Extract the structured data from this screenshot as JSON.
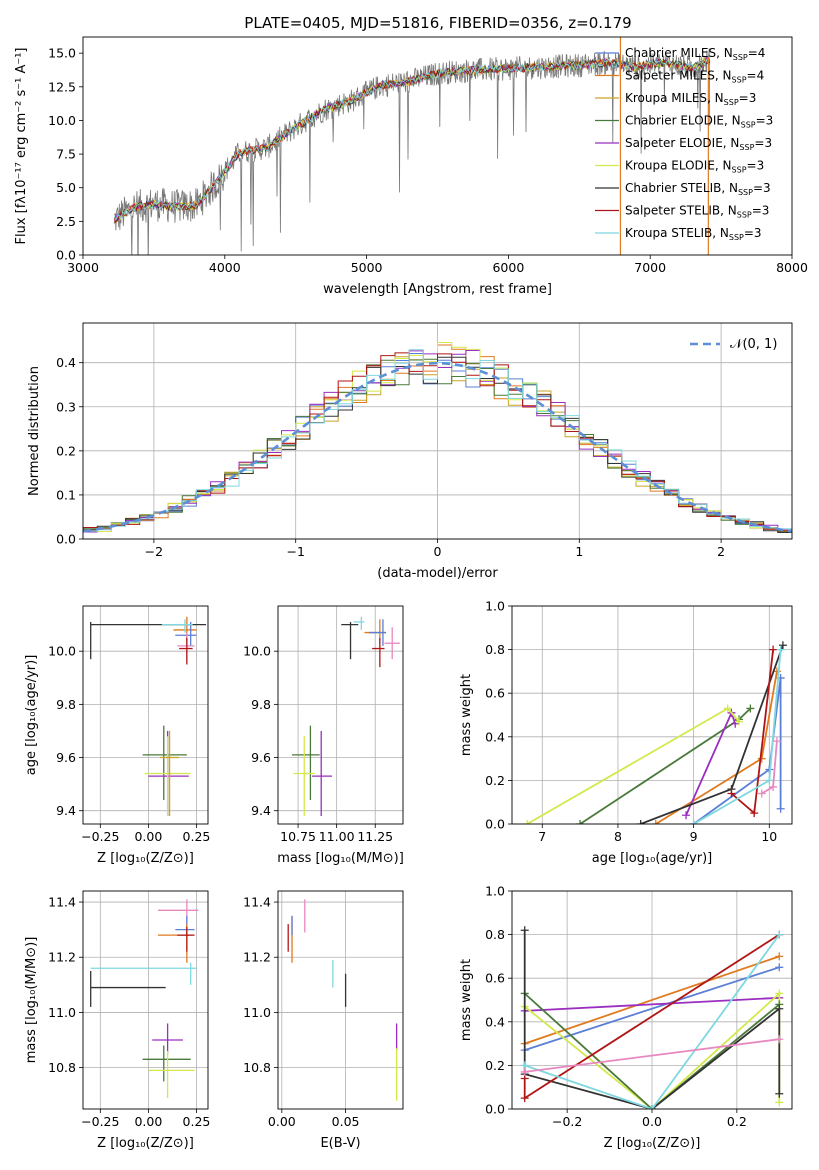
{
  "figure": {
    "title": "PLATE=0405, MJD=51816, FIBERID=0356, z=0.179"
  },
  "colors": {
    "chabrier_miles": "#5b7fd6",
    "salpeter_miles": "#e07a1f",
    "kroupa_miles": "#c9a227",
    "chabrier_elodie": "#4a7a3a",
    "salpeter_elodie": "#9a2ec0",
    "kroupa_elodie": "#d4e84a",
    "chabrier_stelib": "#333333",
    "salpeter_stelib": "#b01515",
    "kroupa_stelib": "#7fd8e0",
    "extra_pink": "#e888c0",
    "grey_data": "#777777"
  },
  "chart_data": [
    {
      "id": "spectrum",
      "type": "line",
      "title": "PLATE=0405, MJD=51816, FIBERID=0356, z=0.179",
      "xlabel": "wavelength [Angstrom, rest frame]",
      "ylabel": "Flux [fλ10⁻¹⁷ erg cm⁻² s⁻¹ A⁻¹]",
      "xlim": [
        3000,
        8000
      ],
      "ylim": [
        0,
        16.2
      ],
      "xticks": [
        "3000",
        "4000",
        "5000",
        "6000",
        "7000",
        "8000"
      ],
      "yticks": [
        "0.0",
        "2.5",
        "5.0",
        "7.5",
        "10.0",
        "12.5",
        "15.0"
      ],
      "legend": [
        "Chabrier MILES, N_SSP=4",
        "Salpeter MILES, N_SSP=4",
        "Kroupa MILES, N_SSP=3",
        "Chabrier ELODIE, N_SSP=3",
        "Salpeter ELODIE, N_SSP=3",
        "Kroupa ELODIE, N_SSP=3",
        "Chabrier STELIB, N_SSP=3",
        "Salpeter STELIB, N_SSP=3",
        "Kroupa STELIB, N_SSP=3"
      ],
      "continuum_x": [
        3220,
        3350,
        3500,
        3650,
        3800,
        3950,
        4100,
        4300,
        4500,
        4700,
        4900,
        5100,
        5300,
        5500,
        5700,
        5900,
        6100,
        6300,
        6500,
        6700,
        6900,
        7100,
        7300,
        7420
      ],
      "continuum_y": [
        2.6,
        3.5,
        3.8,
        3.6,
        3.7,
        5.5,
        7.6,
        8.0,
        9.5,
        10.8,
        11.5,
        12.6,
        12.9,
        13.5,
        13.7,
        13.8,
        13.9,
        14.0,
        14.1,
        14.3,
        14.0,
        14.3,
        13.9,
        14.5
      ]
    },
    {
      "id": "residuals",
      "type": "line",
      "xlabel": "(data-model)/error",
      "ylabel": "Normed distribution",
      "xlim": [
        -2.5,
        2.5
      ],
      "ylim": [
        0,
        0.49
      ],
      "xticks": [
        "−2",
        "−1",
        "0",
        "1",
        "2"
      ],
      "yticks": [
        "0.0",
        "0.1",
        "0.2",
        "0.3",
        "0.4"
      ],
      "legend": [
        "𝒩(0, 1)"
      ],
      "gaussian": {
        "mu": 0,
        "sigma": 1
      }
    },
    {
      "id": "age_vs_Z",
      "type": "scatter",
      "xlabel": "Z [log₁₀(Z/Z⊙)]",
      "ylabel": "age  [log₁₀(age/yr)]",
      "xlim": [
        -0.34,
        0.31
      ],
      "ylim": [
        9.35,
        10.17
      ],
      "xticks": [
        "−0.25",
        "0.00",
        "0.25"
      ],
      "yticks": [
        "9.4",
        "9.6",
        "9.8",
        "10.0"
      ],
      "points": [
        {
          "x": -0.3,
          "y": 10.1,
          "xerr": [
            0,
            0.6
          ],
          "yerr": [
            0.13,
            0.01
          ],
          "color": "chabrier_stelib"
        },
        {
          "x": 0.2,
          "y": 10.08,
          "xerr": [
            0.07,
            0.05
          ],
          "yerr": [
            0.04,
            0.05
          ],
          "color": "salpeter_miles"
        },
        {
          "x": 0.22,
          "y": 10.06,
          "xerr": [
            0.08,
            0.03
          ],
          "yerr": [
            0.04,
            0.05
          ],
          "color": "chabrier_miles"
        },
        {
          "x": 0.19,
          "y": 10.1,
          "xerr": [
            0.12,
            0.04
          ],
          "yerr": [
            0.03,
            0.02
          ],
          "color": "kroupa_stelib"
        },
        {
          "x": 0.2,
          "y": 10.02,
          "xerr": [
            0.05,
            0.04
          ],
          "yerr": [
            0.05,
            0.05
          ],
          "color": "extra_pink"
        },
        {
          "x": 0.2,
          "y": 10.01,
          "xerr": [
            0.04,
            0.03
          ],
          "yerr": [
            0.06,
            0.04
          ],
          "color": "salpeter_stelib"
        },
        {
          "x": 0.08,
          "y": 9.61,
          "xerr": [
            0.11,
            0.12
          ],
          "yerr": [
            0.17,
            0.11
          ],
          "color": "chabrier_elodie"
        },
        {
          "x": 0.1,
          "y": 9.53,
          "xerr": [
            0.1,
            0.11
          ],
          "yerr": [
            0.15,
            0.17
          ],
          "color": "salpeter_elodie"
        },
        {
          "x": 0.1,
          "y": 9.54,
          "xerr": [
            0.12,
            0.12
          ],
          "yerr": [
            0.16,
            0.14
          ],
          "color": "kroupa_elodie"
        },
        {
          "x": 0.11,
          "y": 9.6,
          "xerr": [
            0.05,
            0.05
          ],
          "yerr": [
            0.22,
            0.1
          ],
          "color": "kroupa_miles"
        }
      ]
    },
    {
      "id": "age_vs_mass",
      "type": "scatter",
      "xlabel": "mass [log₁₀(M/M⊙)]",
      "ylabel": "",
      "xlim": [
        10.62,
        11.43
      ],
      "ylim": [
        9.35,
        10.17
      ],
      "xticks": [
        "10.75",
        "11.00",
        "11.25"
      ],
      "yticks": [
        "9.4",
        "9.6",
        "9.8",
        "10.0"
      ],
      "points": [
        {
          "x": 11.09,
          "y": 10.1,
          "xerr": [
            0.06,
            0.05
          ],
          "yerr": [
            0.13,
            0.01
          ],
          "color": "chabrier_stelib"
        },
        {
          "x": 11.28,
          "y": 10.07,
          "xerr": [
            0.1,
            0.04
          ],
          "yerr": [
            0.04,
            0.05
          ],
          "color": "salpeter_miles"
        },
        {
          "x": 11.3,
          "y": 10.07,
          "xerr": [
            0.09,
            0.02
          ],
          "yerr": [
            0.05,
            0.05
          ],
          "color": "chabrier_miles"
        },
        {
          "x": 11.16,
          "y": 10.11,
          "xerr": [
            0.05,
            0.02
          ],
          "yerr": [
            0.03,
            0.02
          ],
          "color": "kroupa_stelib"
        },
        {
          "x": 11.36,
          "y": 10.03,
          "xerr": [
            0.05,
            0.05
          ],
          "yerr": [
            0.06,
            0.06
          ],
          "color": "extra_pink"
        },
        {
          "x": 11.28,
          "y": 10.01,
          "xerr": [
            0.05,
            0.03
          ],
          "yerr": [
            0.07,
            0.04
          ],
          "color": "salpeter_stelib"
        },
        {
          "x": 10.83,
          "y": 9.61,
          "xerr": [
            0.12,
            0.06
          ],
          "yerr": [
            0.17,
            0.11
          ],
          "color": "chabrier_elodie"
        },
        {
          "x": 10.9,
          "y": 9.53,
          "xerr": [
            0.06,
            0.07
          ],
          "yerr": [
            0.15,
            0.17
          ],
          "color": "salpeter_elodie"
        },
        {
          "x": 10.79,
          "y": 9.54,
          "xerr": [
            0.07,
            0.07
          ],
          "yerr": [
            0.16,
            0.14
          ],
          "color": "kroupa_elodie"
        }
      ]
    },
    {
      "id": "weight_vs_age",
      "type": "line",
      "xlabel": "age  [log₁₀(age/yr)]",
      "ylabel": "mass weight",
      "xlim": [
        6.6,
        10.3
      ],
      "ylim": [
        0,
        1.0
      ],
      "xticks": [
        "7",
        "8",
        "9",
        "10"
      ],
      "yticks": [
        "0.0",
        "0.2",
        "0.4",
        "0.6",
        "0.8",
        "1.0"
      ],
      "series": [
        {
          "color": "chabrier_miles",
          "x": [
            9.0,
            10.0,
            10.15,
            10.15
          ],
          "y": [
            0.0,
            0.25,
            0.67,
            0.07
          ]
        },
        {
          "color": "salpeter_miles",
          "x": [
            8.5,
            9.9,
            10.1
          ],
          "y": [
            0.0,
            0.3,
            0.7
          ]
        },
        {
          "color": "chabrier_elodie",
          "x": [
            7.5,
            9.6,
            9.75
          ],
          "y": [
            0.0,
            0.48,
            0.53
          ]
        },
        {
          "color": "salpeter_elodie",
          "x": [
            8.9,
            9.5,
            9.55
          ],
          "y": [
            0.04,
            0.51,
            0.46
          ]
        },
        {
          "color": "kroupa_elodie",
          "x": [
            6.8,
            9.45,
            9.6
          ],
          "y": [
            0.0,
            0.53,
            0.47
          ]
        },
        {
          "color": "chabrier_stelib",
          "x": [
            8.3,
            9.5,
            10.18
          ],
          "y": [
            0.0,
            0.16,
            0.82
          ]
        },
        {
          "color": "salpeter_stelib",
          "x": [
            9.5,
            9.8,
            10.05
          ],
          "y": [
            0.14,
            0.05,
            0.8
          ]
        },
        {
          "color": "kroupa_stelib",
          "x": [
            9.0,
            10.0,
            10.15
          ],
          "y": [
            0.0,
            0.2,
            0.8
          ]
        },
        {
          "color": "extra_pink",
          "x": [
            9.9,
            10.05,
            10.1
          ],
          "y": [
            0.14,
            0.17,
            0.38
          ]
        }
      ]
    },
    {
      "id": "mass_vs_Z",
      "type": "scatter",
      "xlabel": "Z [log₁₀(Z/Z⊙)]",
      "ylabel": "mass [log₁₀(M/M⊙)]",
      "xlim": [
        -0.34,
        0.31
      ],
      "ylim": [
        10.65,
        11.44
      ],
      "xticks": [
        "−0.25",
        "0.00",
        "0.25"
      ],
      "yticks": [
        "10.8",
        "11.0",
        "11.2",
        "11.4"
      ],
      "points": [
        {
          "x": -0.3,
          "y": 11.09,
          "xerr": [
            0,
            0.39
          ],
          "yerr": [
            0.07,
            0.06
          ],
          "color": "chabrier_stelib"
        },
        {
          "x": 0.2,
          "y": 11.37,
          "xerr": [
            0.15,
            0.06
          ],
          "yerr": [
            0.06,
            0.04
          ],
          "color": "extra_pink"
        },
        {
          "x": 0.2,
          "y": 11.3,
          "xerr": [
            0.06,
            0.04
          ],
          "yerr": [
            0.02,
            0.05
          ],
          "color": "chabrier_miles"
        },
        {
          "x": 0.2,
          "y": 11.28,
          "xerr": [
            0.15,
            0.03
          ],
          "yerr": [
            0.1,
            0.04
          ],
          "color": "salpeter_miles"
        },
        {
          "x": 0.2,
          "y": 11.28,
          "xerr": [
            0.05,
            0.04
          ],
          "yerr": [
            0.06,
            0.03
          ],
          "color": "salpeter_stelib"
        },
        {
          "x": 0.22,
          "y": 11.16,
          "xerr": [
            0.52,
            0.03
          ],
          "yerr": [
            0.06,
            0.02
          ],
          "color": "kroupa_stelib"
        },
        {
          "x": 0.1,
          "y": 10.9,
          "xerr": [
            0.08,
            0.08
          ],
          "yerr": [
            0.05,
            0.06
          ],
          "color": "salpeter_elodie"
        },
        {
          "x": 0.08,
          "y": 10.83,
          "xerr": [
            0.11,
            0.14
          ],
          "yerr": [
            0.08,
            0.05
          ],
          "color": "chabrier_elodie"
        },
        {
          "x": 0.1,
          "y": 10.79,
          "xerr": [
            0.1,
            0.14
          ],
          "yerr": [
            0.1,
            0.07
          ],
          "color": "kroupa_elodie"
        }
      ]
    },
    {
      "id": "mass_vs_ebv",
      "type": "scatter",
      "xlabel": "E(B-V)",
      "ylabel": "",
      "xlim": [
        -0.003,
        0.095
      ],
      "ylim": [
        10.65,
        11.44
      ],
      "xticks": [
        "0.00",
        "0.05"
      ],
      "yticks": [
        "10.8",
        "11.0",
        "11.2",
        "11.4"
      ],
      "points": [
        {
          "x": 0.005,
          "y": 11.28,
          "yerr": [
            0.06,
            0.04
          ],
          "color": "salpeter_stelib"
        },
        {
          "x": 0.008,
          "y": 11.28,
          "yerr": [
            0.1,
            0.07
          ],
          "color": "salpeter_miles"
        },
        {
          "x": 0.008,
          "y": 11.3,
          "yerr": [
            0.02,
            0.05
          ],
          "color": "chabrier_miles"
        },
        {
          "x": 0.018,
          "y": 11.35,
          "yerr": [
            0.06,
            0.06
          ],
          "color": "extra_pink"
        },
        {
          "x": 0.04,
          "y": 11.14,
          "yerr": [
            0.05,
            0.05
          ],
          "color": "kroupa_stelib"
        },
        {
          "x": 0.05,
          "y": 11.08,
          "yerr": [
            0.06,
            0.06
          ],
          "color": "chabrier_stelib"
        },
        {
          "x": 0.09,
          "y": 10.9,
          "yerr": [
            0.04,
            0.06
          ],
          "color": "salpeter_elodie"
        },
        {
          "x": 0.09,
          "y": 10.78,
          "yerr": [
            0.1,
            0.09
          ],
          "color": "kroupa_elodie"
        }
      ]
    },
    {
      "id": "weight_vs_Z",
      "type": "line",
      "xlabel": "Z [log₁₀(Z/Z⊙)]",
      "ylabel": "mass weight",
      "xlim": [
        -0.33,
        0.33
      ],
      "ylim": [
        0,
        1.0
      ],
      "xticks": [
        "−0.2",
        "0.0",
        "0.2"
      ],
      "yticks": [
        "0.0",
        "0.2",
        "0.4",
        "0.6",
        "0.8",
        "1.0"
      ],
      "series": [
        {
          "color": "chabrier_miles",
          "x": [
            -0.3,
            0.3
          ],
          "y": [
            0.27,
            0.65
          ]
        },
        {
          "color": "salpeter_miles",
          "x": [
            -0.3,
            0.3
          ],
          "y": [
            0.3,
            0.7
          ]
        },
        {
          "color": "salpeter_elodie",
          "x": [
            -0.3,
            0.3
          ],
          "y": [
            0.45,
            0.51
          ]
        },
        {
          "color": "kroupa_elodie",
          "x": [
            -0.3,
            0.0,
            0.3,
            0.3
          ],
          "y": [
            0.47,
            0.0,
            0.53,
            0.03
          ]
        },
        {
          "color": "chabrier_elodie",
          "x": [
            -0.3,
            0.0,
            0.3
          ],
          "y": [
            0.53,
            0.0,
            0.48
          ]
        },
        {
          "color": "chabrier_stelib",
          "x": [
            -0.3,
            -0.3,
            0.0,
            0.3,
            0.3
          ],
          "y": [
            0.82,
            0.16,
            0.0,
            0.46,
            0.07
          ]
        },
        {
          "color": "salpeter_stelib",
          "x": [
            -0.3,
            -0.3,
            0.3
          ],
          "y": [
            0.14,
            0.05,
            0.8
          ]
        },
        {
          "color": "kroupa_stelib",
          "x": [
            -0.3,
            0.0,
            0.3
          ],
          "y": [
            0.2,
            0.0,
            0.8
          ]
        },
        {
          "color": "extra_pink",
          "x": [
            -0.3,
            0.3
          ],
          "y": [
            0.17,
            0.32
          ]
        }
      ]
    }
  ]
}
